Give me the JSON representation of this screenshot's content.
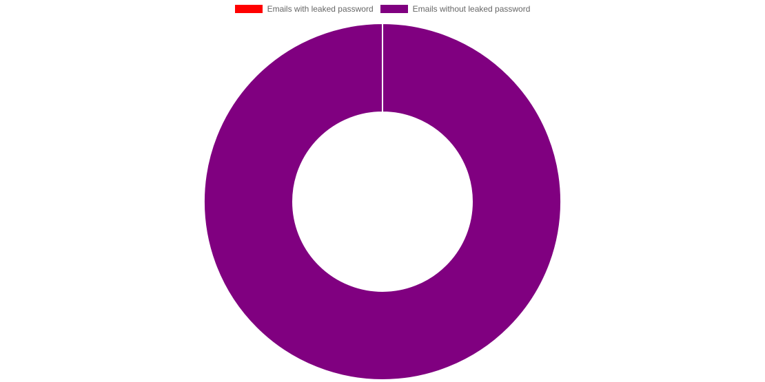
{
  "chart_data": {
    "type": "pie",
    "variant": "doughnut",
    "categories": [
      "Emails with leaked password",
      "Emails without leaked password"
    ],
    "values": [
      0,
      100
    ],
    "colors": [
      "#ff0000",
      "#800080"
    ],
    "legend_position": "top"
  }
}
